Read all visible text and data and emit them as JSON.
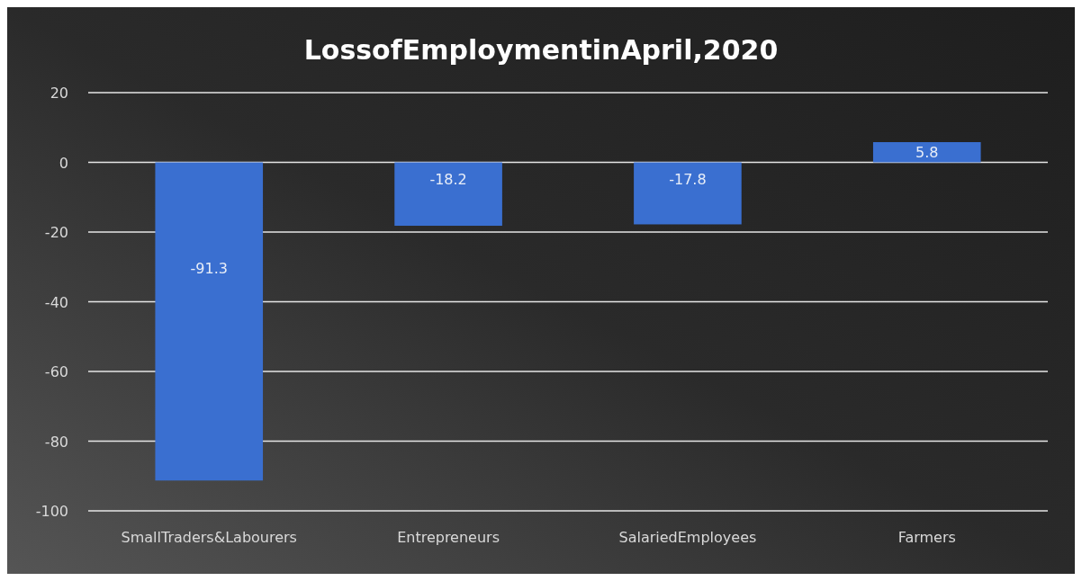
{
  "chart_data": {
    "type": "bar",
    "title": "LossofEmploymentinApril,2020",
    "categories": [
      "SmallTraders&Labourers",
      "Entrepreneurs",
      "SalariedEmployees",
      "Farmers"
    ],
    "values": [
      -91.3,
      -18.2,
      -17.8,
      5.8
    ],
    "color": "#3a6fd0",
    "ylim": [
      -100,
      20
    ],
    "yticks": [
      -100,
      -80,
      -60,
      -40,
      -20,
      0,
      20
    ],
    "grid": "y",
    "data_labels": true
  }
}
